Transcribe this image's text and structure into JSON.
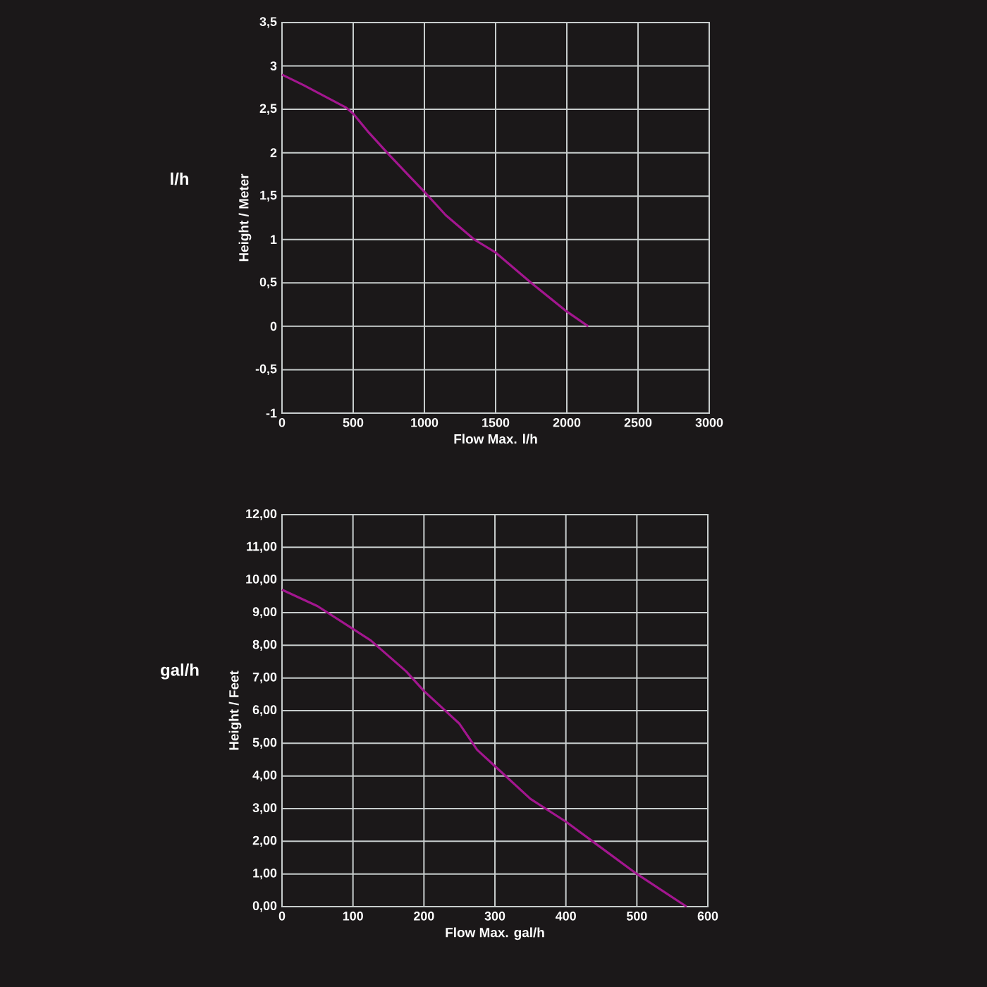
{
  "chart_data": [
    {
      "type": "line",
      "subtitle": "l/h",
      "xlabel": "Flow Max. l/h",
      "ylabel": "Height / Meter",
      "xlim": [
        0,
        3000
      ],
      "ylim": [
        -1,
        3.5
      ],
      "xticks": [
        0,
        500,
        1000,
        1500,
        2000,
        2500,
        3000
      ],
      "yticks": [
        {
          "value": -1,
          "label": "-1"
        },
        {
          "value": -0.5,
          "label": "-0,5"
        },
        {
          "value": 0,
          "label": "0"
        },
        {
          "value": 0.5,
          "label": "0,5"
        },
        {
          "value": 1,
          "label": "1"
        },
        {
          "value": 1.5,
          "label": "1,5"
        },
        {
          "value": 2,
          "label": "2"
        },
        {
          "value": 2.5,
          "label": "2,5"
        },
        {
          "value": 3,
          "label": "3"
        },
        {
          "value": 3.5,
          "label": "3,5"
        }
      ],
      "grid": true,
      "x": [
        0,
        150,
        300,
        450,
        500,
        600,
        750,
        900,
        1000,
        1150,
        1350,
        1500,
        1750,
        2000,
        2150
      ],
      "series": [
        {
          "color": "#a3168f",
          "values": [
            2.9,
            2.78,
            2.65,
            2.52,
            2.45,
            2.25,
            1.98,
            1.72,
            1.55,
            1.28,
            1.0,
            0.85,
            0.5,
            0.17,
            0
          ]
        }
      ]
    },
    {
      "type": "line",
      "subtitle": "gal/h",
      "xlabel": "Flow Max. gal/h",
      "ylabel": "Height / Feet",
      "xlim": [
        0,
        600
      ],
      "ylim": [
        0,
        12
      ],
      "xticks": [
        0,
        100,
        200,
        300,
        400,
        500,
        600
      ],
      "yticks": [
        {
          "value": 0,
          "label": "0,00"
        },
        {
          "value": 1,
          "label": "1,00"
        },
        {
          "value": 2,
          "label": "2,00"
        },
        {
          "value": 3,
          "label": "3,00"
        },
        {
          "value": 4,
          "label": "4,00"
        },
        {
          "value": 5,
          "label": "5,00"
        },
        {
          "value": 6,
          "label": "6,00"
        },
        {
          "value": 7,
          "label": "7,00"
        },
        {
          "value": 8,
          "label": "8,00"
        },
        {
          "value": 9,
          "label": "9,00"
        },
        {
          "value": 10,
          "label": "10,00"
        },
        {
          "value": 11,
          "label": "11,00"
        },
        {
          "value": 12,
          "label": "12,00"
        }
      ],
      "grid": true,
      "x": [
        0,
        50,
        100,
        125,
        175,
        200,
        250,
        275,
        300,
        350,
        400,
        450,
        500,
        570
      ],
      "series": [
        {
          "color": "#a3168f",
          "values": [
            9.7,
            9.2,
            8.5,
            8.15,
            7.2,
            6.6,
            5.6,
            4.8,
            4.3,
            3.3,
            2.6,
            1.8,
            1.0,
            0
          ]
        }
      ]
    }
  ]
}
